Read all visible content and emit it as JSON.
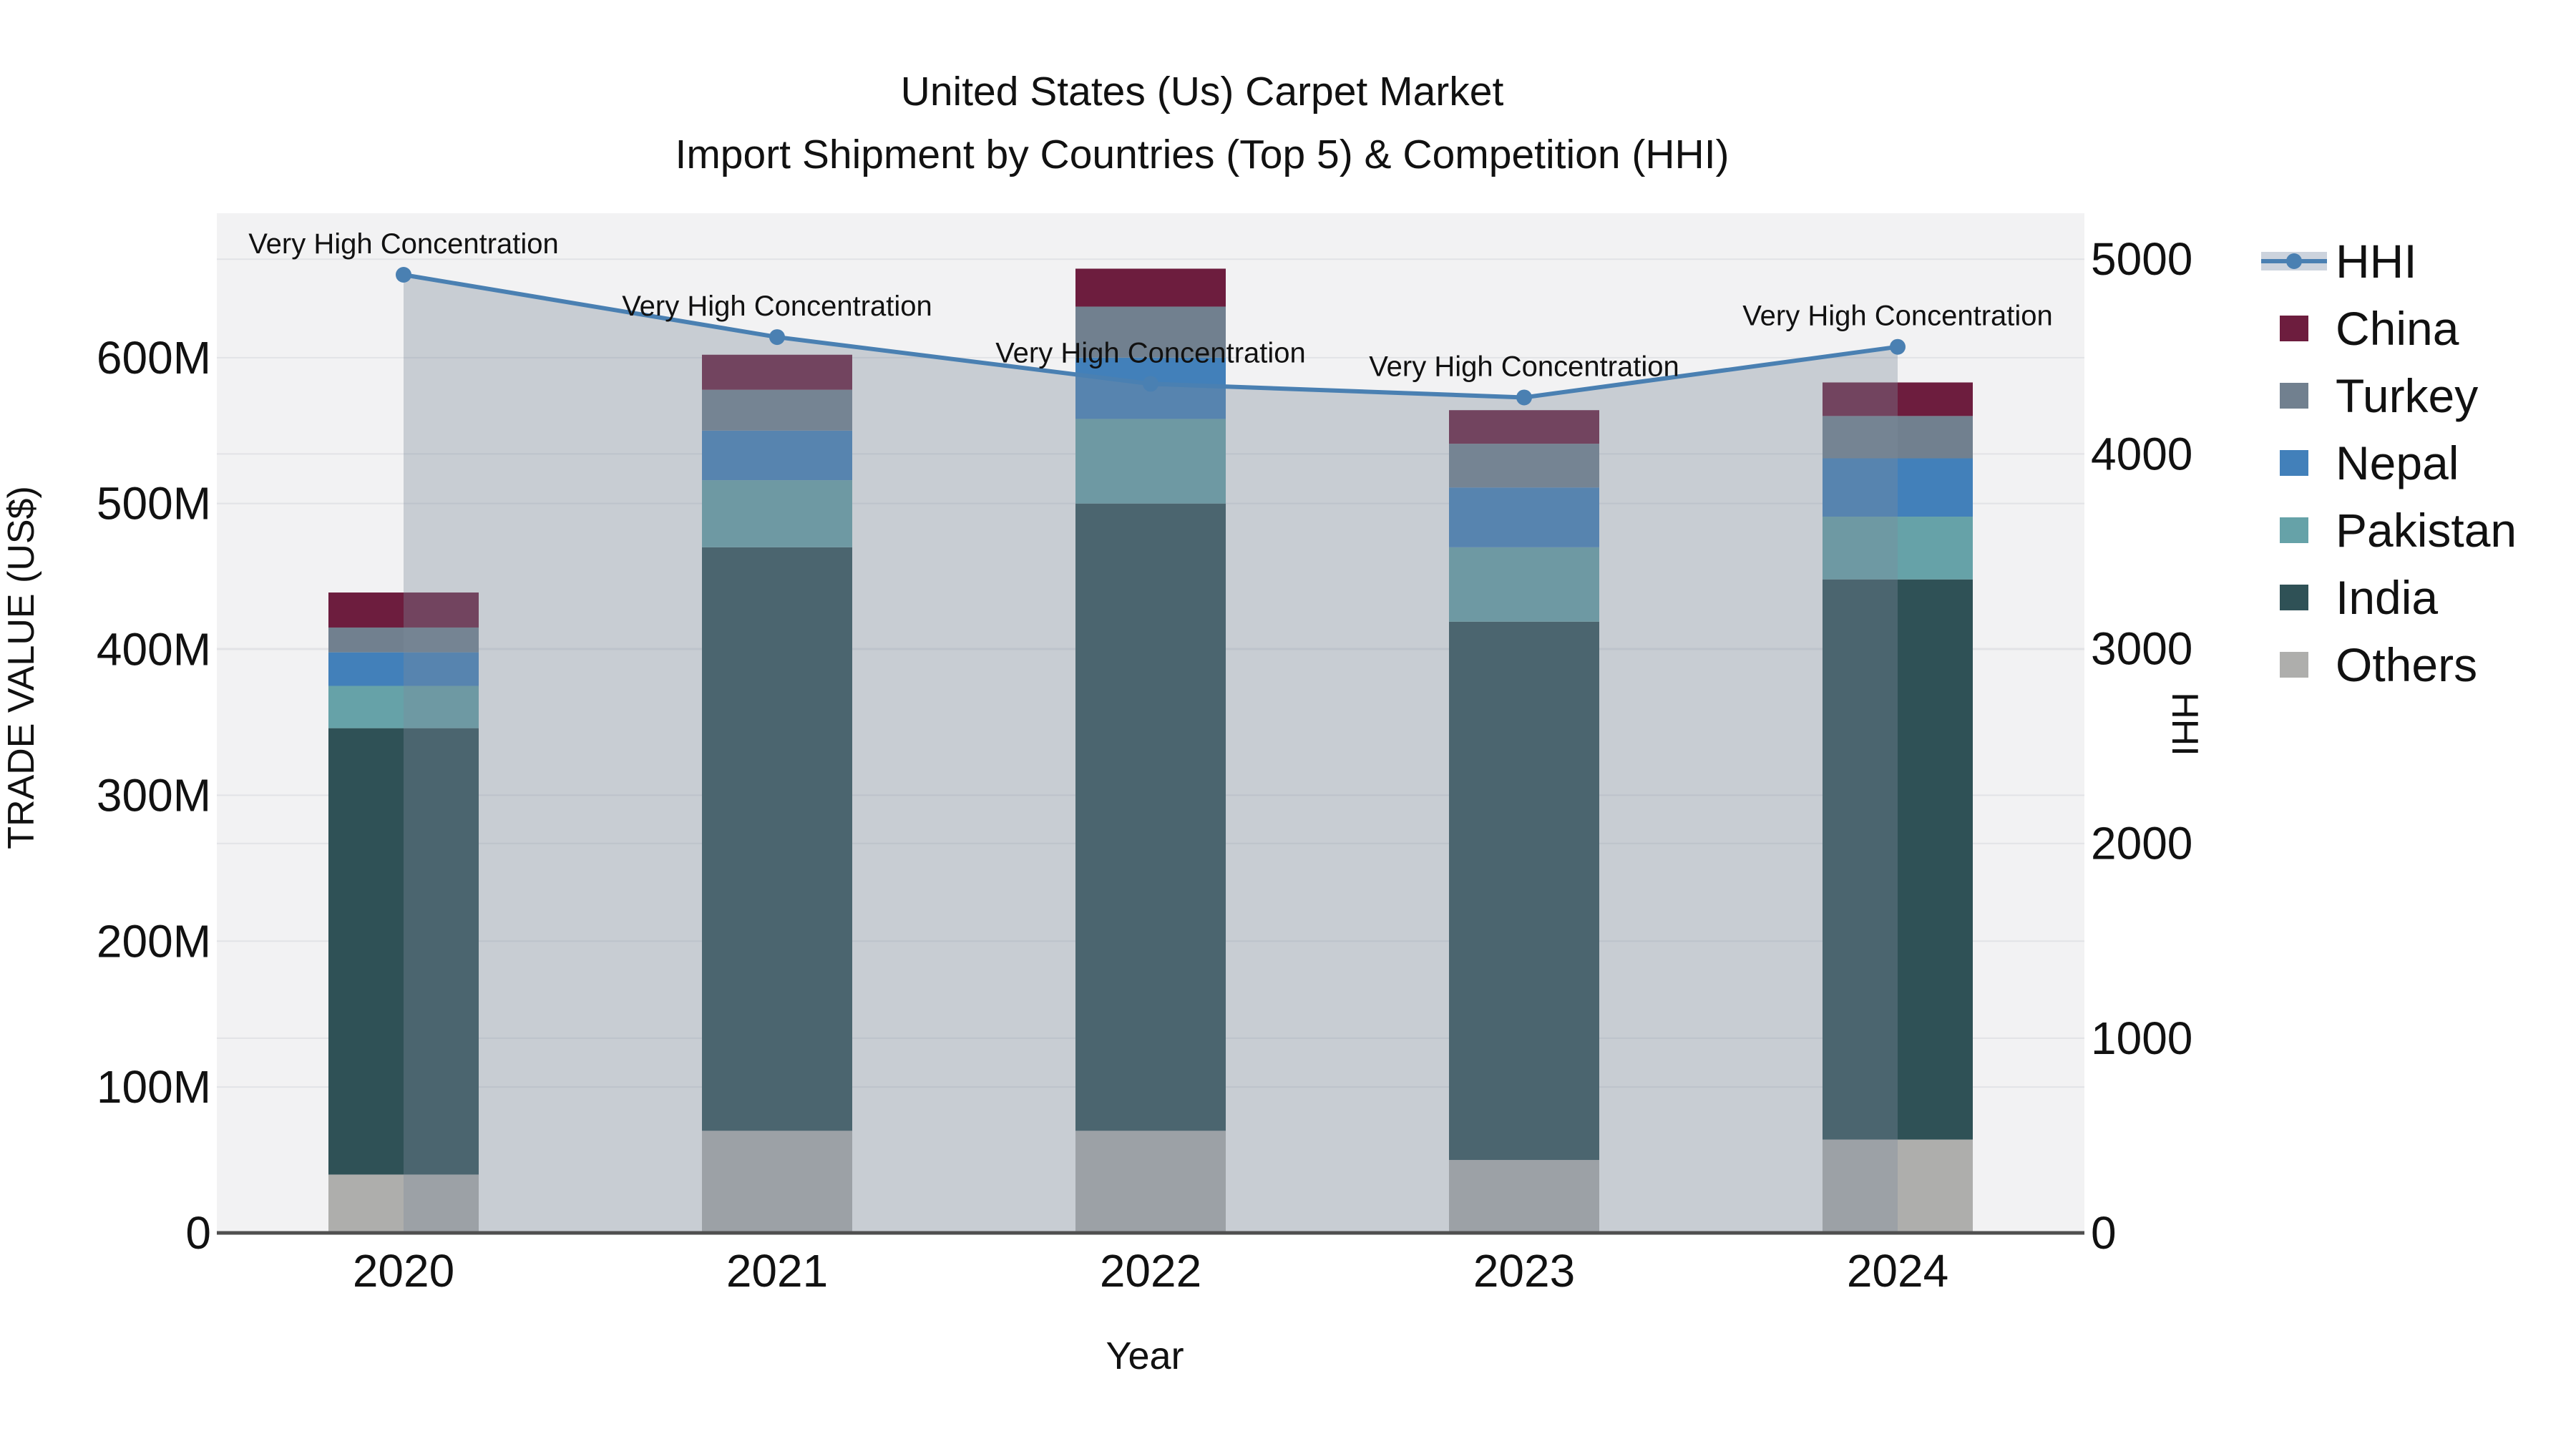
{
  "title": {
    "line1": "United States (Us) Carpet Market",
    "line2": "Import Shipment by Countries (Top 5) & Competition (HHI)"
  },
  "axes": {
    "x_title": "Year",
    "left_title": "TRADE VALUE (US$)",
    "right_title": "HHI"
  },
  "colors": {
    "page_bg": "#ffffff",
    "plot_bg": "#f2f2f3",
    "grid": "#e2e3e6",
    "axis_line": "#4f4f4f",
    "text": "#111111"
  },
  "legend": {
    "items": [
      {
        "label": "HHI",
        "type": "line",
        "color": "#4a80b2",
        "band_color": "#ccd3dd"
      },
      {
        "label": "China",
        "type": "swatch",
        "color": "#6d1d3e"
      },
      {
        "label": "Turkey",
        "type": "swatch",
        "color": "#71808f"
      },
      {
        "label": "Nepal",
        "type": "swatch",
        "color": "#4280ba"
      },
      {
        "label": "Pakistan",
        "type": "swatch",
        "color": "#66a2a8"
      },
      {
        "label": "India",
        "type": "swatch",
        "color": "#2f5156"
      },
      {
        "label": "Others",
        "type": "swatch",
        "color": "#aeaeac"
      }
    ]
  },
  "chart_data": {
    "type": "bar+line",
    "title": "United States (Us) Carpet Market - Import Shipment by Countries (Top 5) & Competition (HHI)",
    "categories": [
      "2020",
      "2021",
      "2022",
      "2023",
      "2024"
    ],
    "xlabel": "Year",
    "grid": true,
    "legend_position": "right",
    "bar_stack_order": "bottom-to-top",
    "series": [
      {
        "name": "Others",
        "color": "#aeaeac",
        "values": [
          40,
          70,
          70,
          50,
          64
        ]
      },
      {
        "name": "India",
        "color": "#2f5156",
        "values": [
          306,
          400,
          430,
          369,
          384
        ]
      },
      {
        "name": "Pakistan",
        "color": "#66a2a8",
        "values": [
          29,
          46,
          58,
          51,
          43
        ]
      },
      {
        "name": "Nepal",
        "color": "#4280ba",
        "values": [
          23,
          34,
          42,
          41,
          40
        ]
      },
      {
        "name": "Turkey",
        "color": "#71808f",
        "values": [
          17,
          28,
          35,
          30,
          29
        ]
      },
      {
        "name": "China",
        "color": "#6d1d3e",
        "values": [
          24,
          24,
          26,
          23,
          23
        ]
      }
    ],
    "line_series": {
      "name": "HHI",
      "color": "#4a80b2",
      "area_fill": "rgba(126,138,156,0.36)",
      "values": [
        4920,
        4600,
        4360,
        4290,
        4550
      ]
    },
    "annotations": {
      "per_point": [
        "Very High Concentration",
        "Very High Concentration",
        "Very High Concentration",
        "Very High Concentration",
        "Very High Concentration"
      ]
    },
    "y_left": {
      "label": "TRADE VALUE (US$)",
      "unit": "M",
      "max": 699,
      "tick_values": [
        0,
        100,
        200,
        300,
        400,
        500,
        600
      ],
      "tick_labels": [
        "0",
        "100M",
        "200M",
        "300M",
        "400M",
        "500M",
        "600M"
      ]
    },
    "y_right": {
      "label": "HHI",
      "max": 5236,
      "tick_values": [
        0,
        1000,
        2000,
        3000,
        4000,
        5000
      ],
      "tick_labels": [
        "0",
        "1000",
        "2000",
        "3000",
        "4000",
        "5000"
      ]
    }
  }
}
